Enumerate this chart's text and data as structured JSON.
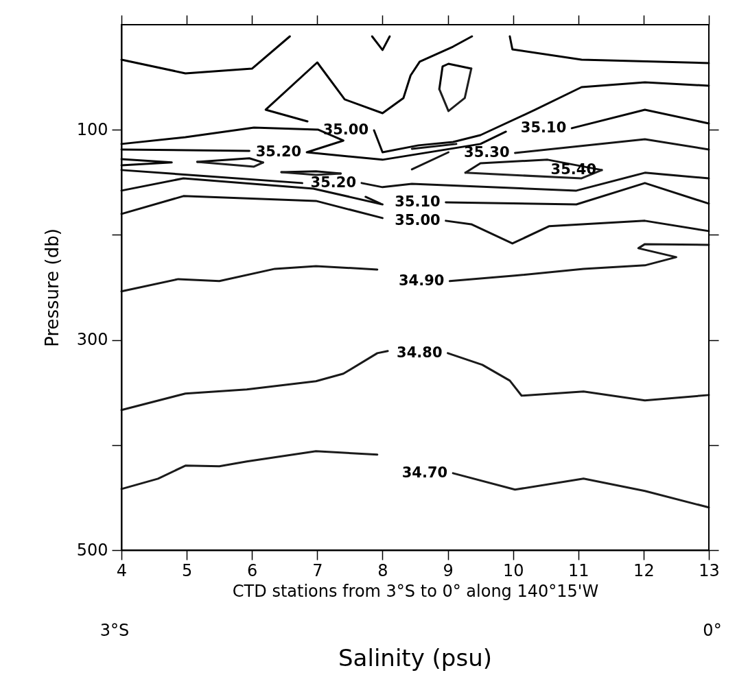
{
  "chart_data": {
    "type": "line",
    "title": "Salinity (psu)",
    "xlabel": "CTD stations from 3°S to 0° along 140°15'W",
    "ylabel": "Pressure (db)",
    "xlim": [
      4,
      13
    ],
    "xticks": [
      4,
      5,
      6,
      7,
      8,
      9,
      10,
      11,
      12,
      13
    ],
    "ylim": [
      500,
      0
    ],
    "yticks": [
      100,
      {
        "value": 200,
        "label": null
      },
      300,
      {
        "value": 400,
        "label": null
      },
      500
    ],
    "grid": false,
    "legend": false,
    "marker": "none",
    "line_style": "solid",
    "series": [
      {
        "color": "#000000",
        "x": [
          4,
          4.98,
          6.0,
          6.58
        ],
        "values": [
          33.3,
          46.3,
          41.8,
          11.1
        ]
      },
      {
        "color": "#010101",
        "x": [
          6.85,
          6.21,
          7.0,
          7.42,
          8.0,
          8.32,
          8.43,
          8.57,
          9.08,
          9.37
        ],
        "values": [
          92,
          80.9,
          35.9,
          71.1,
          84.2,
          69.8,
          48.3,
          35.2,
          20.9,
          11.1
        ]
      },
      {
        "color": "#020202",
        "x": [
          7.84,
          8.0,
          8.11
        ],
        "values": [
          11.1,
          24.1,
          11.1
        ]
      },
      {
        "color": "#030303",
        "x": [
          8.87,
          8.92,
          9.01,
          9.36
        ],
        "values": [
          61.3,
          39.8,
          37.2,
          41.8
        ]
      },
      {
        "color": "#1d1d1d",
        "x": [
          8.87,
          9.01,
          9.26,
          9.36
        ],
        "values": [
          61.3,
          82.2,
          69.8,
          41.8
        ]
      },
      {
        "color": "#040404",
        "x": [
          9.95,
          9.99,
          11.05,
          13
        ],
        "values": [
          11.1,
          23.5,
          33.3,
          36.5
        ]
      },
      {
        "color": "#050505",
        "x": [
          4,
          4.98,
          6.03,
          7.01,
          7.4,
          6.84,
          8.0,
          9.5,
          9.89
        ],
        "values": [
          113.5,
          107.0,
          97.9,
          99.8,
          110.3,
          121.4,
          128.5,
          113.5,
          101.8
        ]
      },
      {
        "color": "#060606",
        "x": [
          10.9,
          12.02,
          13
        ],
        "values": [
          98.5,
          80.9,
          94.0
        ]
      },
      {
        "color": "#070707",
        "x": [
          7.87,
          8.0,
          8.55,
          9.08,
          9.5,
          10.34,
          11.05,
          12.02,
          13
        ],
        "values": [
          100.5,
          121.4,
          114.8,
          111.6,
          105.1,
          80.9,
          59.4,
          54.8,
          58.1
        ]
      },
      {
        "color": "#080808",
        "x": [
          4,
          5.96
        ],
        "values": [
          118.8,
          120.1
        ]
      },
      {
        "color": "#090909",
        "x": [
          4,
          4.77,
          4
        ],
        "values": [
          127.9,
          131.1,
          133.8
        ]
      },
      {
        "color": "#0a0a0a",
        "x": [
          5.16,
          5.96,
          6.17
        ],
        "values": [
          130.5,
          127.1,
          131.1
        ]
      },
      {
        "color": "#1e1e1e",
        "x": [
          5.16,
          6.03,
          6.17
        ],
        "values": [
          130.5,
          135.1,
          131.1
        ]
      },
      {
        "color": "#0b0b0b",
        "x": [
          6.45,
          6.98,
          7.36
        ],
        "values": [
          140.3,
          139.6,
          141.6
        ]
      },
      {
        "color": "#1f1f1f",
        "x": [
          6.45,
          6.98,
          7.36
        ],
        "values": [
          140.3,
          142.9,
          141.6
        ]
      },
      {
        "color": "#0c0c0c",
        "x": [
          4,
          6.77
        ],
        "values": [
          138.3,
          150.7
        ]
      },
      {
        "color": "#0d0d0d",
        "x": [
          7.74,
          7.97
        ],
        "values": [
          163.8,
          170.3
        ]
      },
      {
        "color": "#0e0e0e",
        "x": [
          4,
          4.95,
          6.94,
          8.0
        ],
        "values": [
          157.9,
          146.2,
          156.0,
          171.0
        ]
      },
      {
        "color": "#0f0f0f",
        "x": [
          8.97,
          10.97,
          12.02,
          13
        ],
        "values": [
          169.0,
          171.0,
          150.7,
          170.3
        ]
      },
      {
        "color": "#101010",
        "x": [
          4,
          4.95,
          6.98,
          8.0
        ],
        "values": [
          180.1,
          163.1,
          167.7,
          184.0
        ]
      },
      {
        "color": "#111111",
        "x": [
          8.97,
          9.36,
          9.99,
          10.55,
          12.02,
          13
        ],
        "values": [
          186.6,
          189.9,
          208.2,
          191.8,
          186.6,
          196.4
        ]
      },
      {
        "color": "#121212",
        "x": [
          7.68,
          8.0,
          8.45,
          10.97,
          12.02,
          13
        ],
        "values": [
          150.7,
          154.6,
          151.4,
          157.9,
          140.9,
          146.2
        ]
      },
      {
        "color": "#131313",
        "x": [
          9.27,
          9.5,
          10.53,
          11.36
        ],
        "values": [
          140.9,
          131.8,
          128.5,
          138.3
        ]
      },
      {
        "color": "#202020",
        "x": [
          9.27,
          11.05,
          11.36
        ],
        "values": [
          140.9,
          146.2,
          138.3
        ]
      },
      {
        "color": "#141414",
        "x": [
          8.45,
          9.13
        ],
        "values": [
          118.1,
          113.5
        ]
      },
      {
        "color": "#151515",
        "x": [
          10.03,
          12.02,
          13
        ],
        "values": [
          122.0,
          109.0,
          118.8
        ]
      },
      {
        "color": "#161616",
        "x": [
          8.45,
          9.01
        ],
        "values": [
          137.7,
          121.4
        ]
      },
      {
        "color": "#171717",
        "x": [
          4,
          4.87,
          5.5,
          6.35,
          6.98,
          7.92
        ],
        "values": [
          253.8,
          242.1,
          244,
          232.3,
          229.7,
          233
        ]
      },
      {
        "color": "#181818",
        "x": [
          9.03,
          10.03,
          11.08,
          12.02,
          12.5,
          11.92,
          12.02,
          13
        ],
        "values": [
          244,
          238.8,
          232.3,
          229,
          221.2,
          212.7,
          208.8,
          209.5
        ]
      },
      {
        "color": "#191919",
        "x": [
          4,
          4.98,
          5.92,
          6.98,
          7.4,
          7.92,
          8.08
        ],
        "values": [
          366.7,
          351,
          347.1,
          339.3,
          332.1,
          312.6,
          310.6
        ]
      },
      {
        "color": "#1a1a1a",
        "x": [
          9.0,
          9.53,
          9.95,
          10.13,
          11.08,
          12.02,
          13
        ],
        "values": [
          312.6,
          323.7,
          338.7,
          353,
          349.1,
          357.6,
          352.4
        ]
      },
      {
        "color": "#1b1b1b",
        "x": [
          4,
          4.56,
          4.98,
          5.5,
          5.92,
          6.98,
          7.92
        ],
        "values": [
          441.8,
          432,
          419.6,
          420.2,
          415.7,
          405.9,
          409.1
        ]
      },
      {
        "color": "#1c1c1c",
        "x": [
          9.08,
          10.03,
          11.08,
          12.02,
          13
        ],
        "values": [
          426.8,
          442.4,
          432,
          443.7,
          459.4
        ]
      }
    ],
    "annotations": [
      {
        "text": "35.00",
        "x": 7.87,
        "y": 100.5
      },
      {
        "text": "35.20",
        "x": 6.84,
        "y": 121.4
      },
      {
        "text": "35.20",
        "x": 7.68,
        "y": 150.7
      },
      {
        "text": "35.10",
        "x": 10.9,
        "y": 98.5
      },
      {
        "text": "35.30",
        "x": 10.03,
        "y": 122.0
      },
      {
        "text": "35.40",
        "x": 11.36,
        "y": 138.3
      },
      {
        "text": "35.10",
        "x": 8.97,
        "y": 169.0
      },
      {
        "text": "35.00",
        "x": 8.97,
        "y": 186.6
      },
      {
        "text": "34.90",
        "x": 9.03,
        "y": 244
      },
      {
        "text": "34.80",
        "x": 9.0,
        "y": 312.6
      },
      {
        "text": "34.70",
        "x": 9.08,
        "y": 426.8
      },
      "3°S",
      "0°"
    ]
  }
}
